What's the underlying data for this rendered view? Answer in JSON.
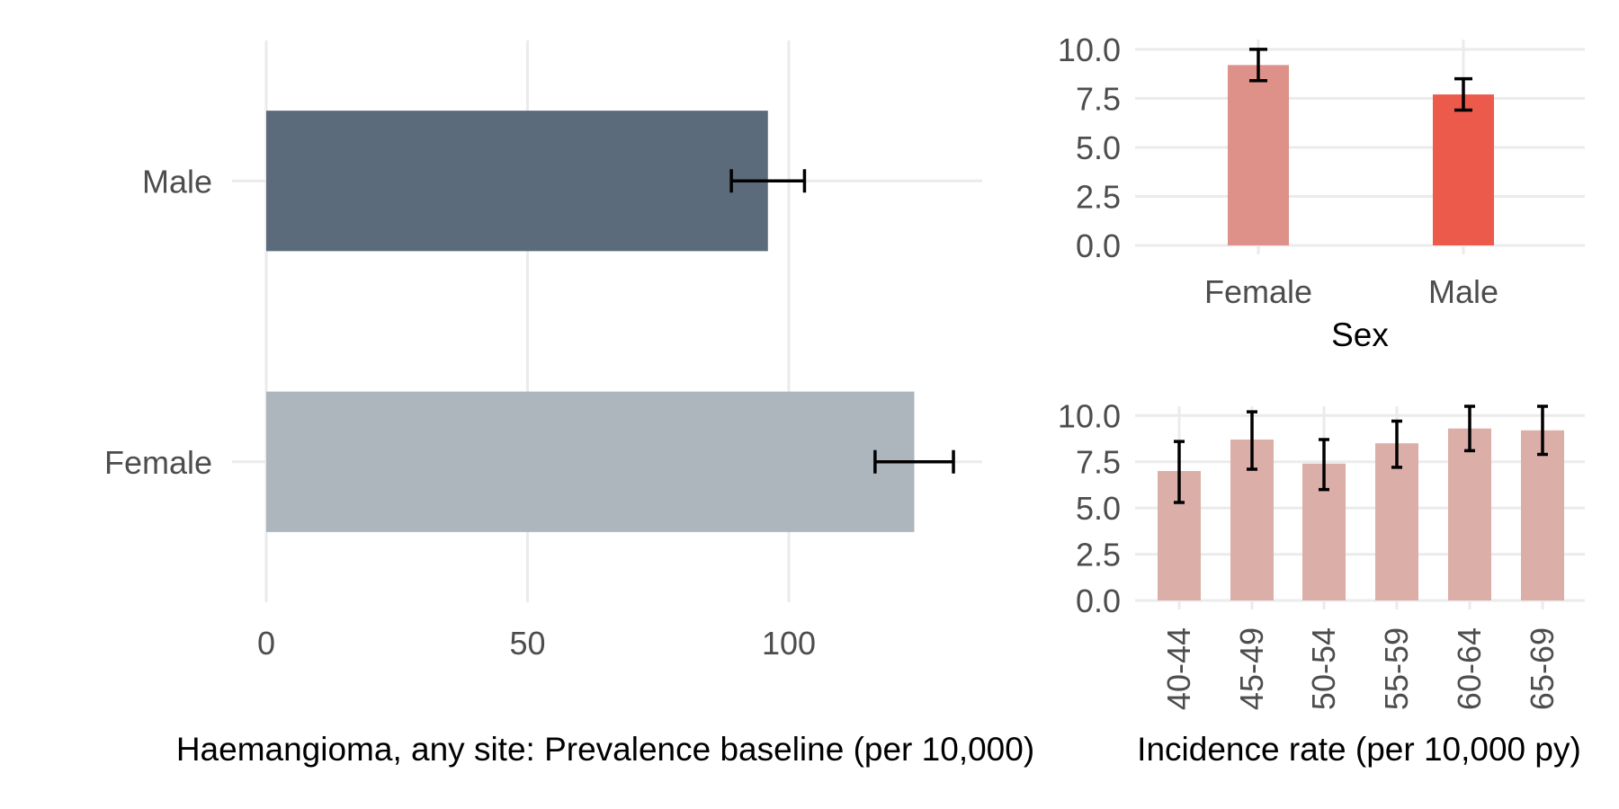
{
  "chart_data": [
    {
      "type": "bar",
      "orientation": "horizontal",
      "xlabel": "Haemangioma, any site: Prevalence baseline (per 10,000)",
      "ylabel": "",
      "categories": [
        "Male",
        "Female"
      ],
      "values": [
        96,
        124
      ],
      "error_low": [
        89,
        116.5
      ],
      "error_high": [
        103,
        131.5
      ],
      "colors": [
        "#5c6b7b",
        "#adb5bd"
      ],
      "xlim": [
        0,
        137
      ],
      "xticks": [
        0,
        50,
        100
      ],
      "grid": true
    },
    {
      "type": "bar",
      "xlabel": "Sex",
      "ylabel": "",
      "categories": [
        "Female",
        "Male"
      ],
      "values": [
        9.2,
        7.7
      ],
      "error_low": [
        8.4,
        6.9
      ],
      "error_high": [
        10.0,
        8.5
      ],
      "colors": [
        "#dd9189",
        "#ec5a4b"
      ],
      "ylim": [
        0,
        10.5
      ],
      "yticks": [
        0.0,
        2.5,
        5.0,
        7.5,
        10.0
      ],
      "grid": true
    },
    {
      "type": "bar",
      "xlabel": "Incidence rate (per 10,000 py)",
      "ylabel": "",
      "categories": [
        "40-44",
        "45-49",
        "50-54",
        "55-59",
        "60-64",
        "65-69"
      ],
      "values": [
        7.0,
        8.7,
        7.4,
        8.5,
        9.3,
        9.2
      ],
      "error_low": [
        5.3,
        7.1,
        6.0,
        7.2,
        8.1,
        7.9
      ],
      "error_high": [
        8.6,
        10.2,
        8.7,
        9.7,
        10.5,
        10.5
      ],
      "colors": [
        "#dcaea8"
      ],
      "ylim": [
        0,
        10.5
      ],
      "yticks": [
        0.0,
        2.5,
        5.0,
        7.5,
        10.0
      ],
      "grid": true
    }
  ]
}
